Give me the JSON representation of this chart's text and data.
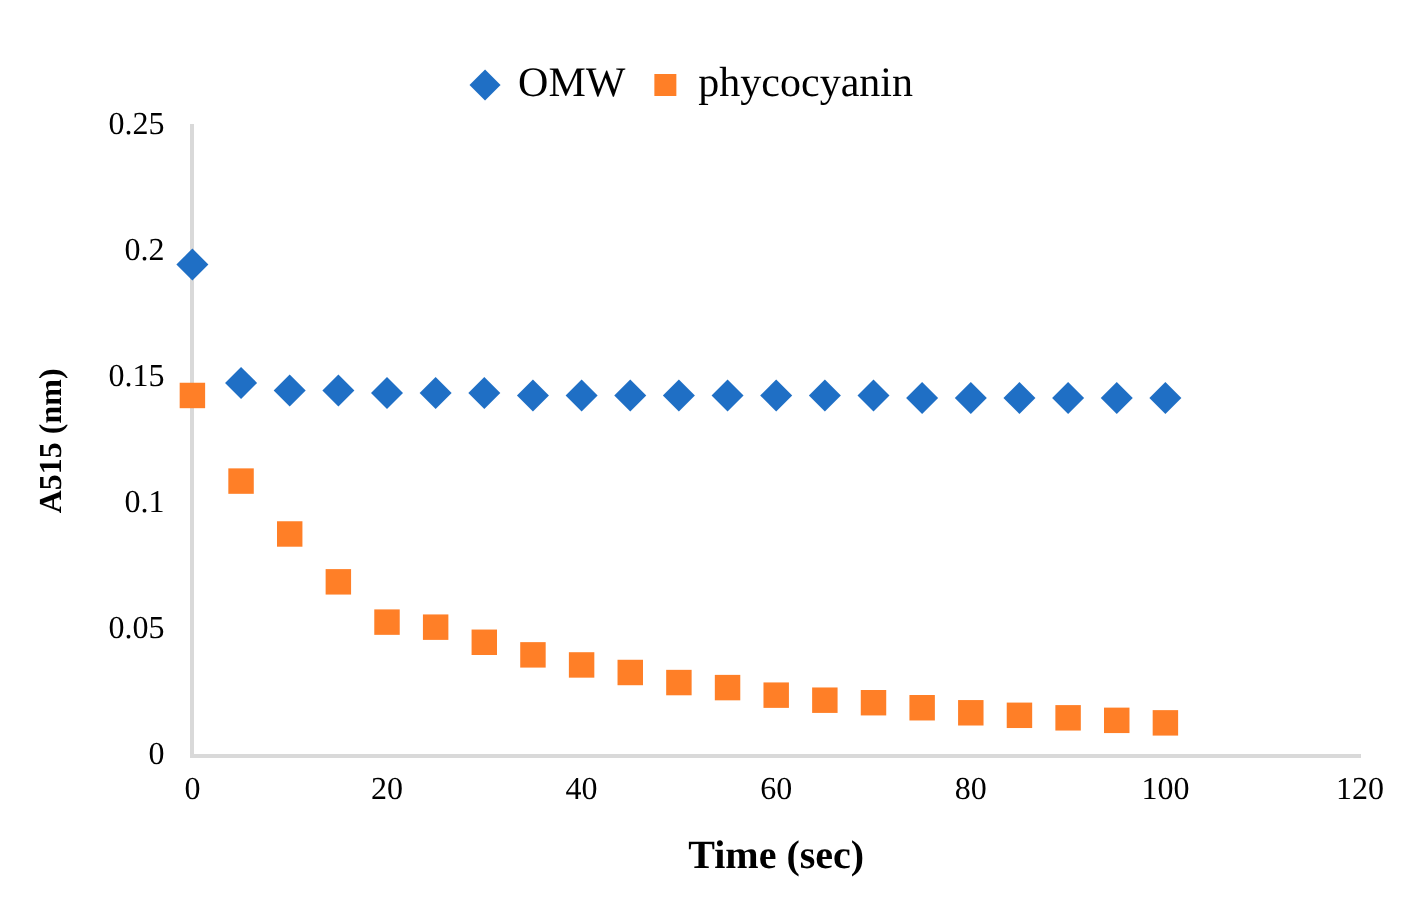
{
  "chart_data": {
    "type": "scatter",
    "xlabel": "Time (sec)",
    "ylabel": "A515 (nm)",
    "x": [
      0,
      5,
      10,
      15,
      20,
      25,
      30,
      35,
      40,
      45,
      50,
      55,
      60,
      65,
      70,
      75,
      80,
      85,
      90,
      95,
      100
    ],
    "series": [
      {
        "name": "OMW",
        "color": "#1f6fc5",
        "marker": "diamond",
        "values": [
          0.195,
          0.148,
          0.145,
          0.145,
          0.144,
          0.144,
          0.144,
          0.143,
          0.143,
          0.143,
          0.143,
          0.143,
          0.143,
          0.143,
          0.143,
          0.142,
          0.142,
          0.142,
          0.142,
          0.142,
          0.142
        ]
      },
      {
        "name": "phycocyanin",
        "color": "#ff7f27",
        "marker": "square",
        "values": [
          0.143,
          0.109,
          0.088,
          0.069,
          0.053,
          0.051,
          0.045,
          0.04,
          0.036,
          0.033,
          0.029,
          0.027,
          0.024,
          0.022,
          0.021,
          0.019,
          0.017,
          0.016,
          0.015,
          0.014,
          0.013
        ]
      }
    ],
    "xlim": [
      0,
      120
    ],
    "xticks": [
      0,
      20,
      40,
      60,
      80,
      100,
      120
    ],
    "ylim": [
      0,
      0.25
    ],
    "yticks": [
      0,
      0.05,
      0.1,
      0.15,
      0.2,
      0.25
    ],
    "grid": false,
    "legend": "top"
  }
}
